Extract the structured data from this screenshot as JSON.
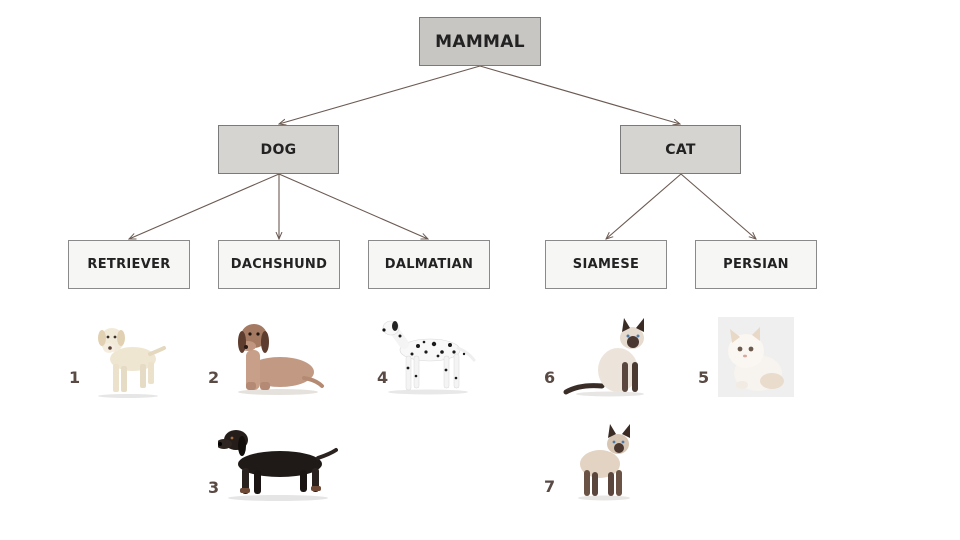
{
  "tree": {
    "root": "MAMMAL",
    "branches": [
      {
        "label": "DOG",
        "children": [
          "RETRIEVER",
          "DACHSHUND",
          "DALMATIAN"
        ]
      },
      {
        "label": "CAT",
        "children": [
          "SIAMESE",
          "PERSIAN"
        ]
      }
    ]
  },
  "photos": [
    {
      "number": "1",
      "breed": "RETRIEVER",
      "icon": "retriever-photo-icon"
    },
    {
      "number": "2",
      "breed": "DACHSHUND",
      "icon": "dachshund-tan-photo-icon"
    },
    {
      "number": "3",
      "breed": "DACHSHUND",
      "icon": "dachshund-black-photo-icon"
    },
    {
      "number": "4",
      "breed": "DALMATIAN",
      "icon": "dalmatian-photo-icon"
    },
    {
      "number": "6",
      "breed": "SIAMESE",
      "icon": "siamese-sitting-photo-icon"
    },
    {
      "number": "7",
      "breed": "SIAMESE",
      "icon": "siamese-standing-photo-icon"
    },
    {
      "number": "5",
      "breed": "PERSIAN",
      "icon": "persian-kitten-photo-icon"
    }
  ],
  "colors": {
    "edge": "#6b5a52",
    "root_fill": "#c8c6c3",
    "branch_fill": "#d6d4d1",
    "leaf_fill": "#f6f6f5"
  }
}
